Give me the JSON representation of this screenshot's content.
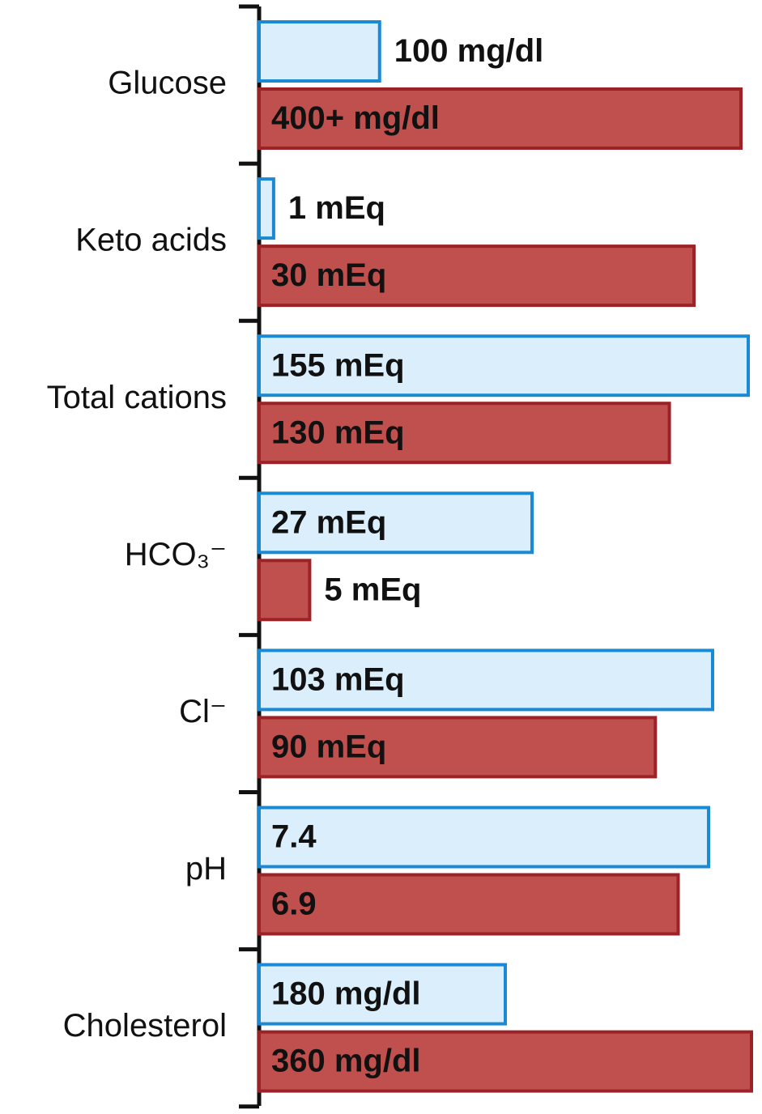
{
  "chart_data": {
    "type": "bar",
    "orientation": "horizontal",
    "categories": [
      "Glucose",
      "Keto acids",
      "Total cations",
      "HCO₃⁻",
      "Cl⁻",
      "pH",
      "Cholesterol"
    ],
    "series": [
      {
        "color": "#dbeefc",
        "values": [
          100,
          1,
          155,
          27,
          103,
          7.4,
          180
        ],
        "value_labels": [
          "100 mg/dl",
          "1 mEq",
          "155 mEq",
          "27 mEq",
          "103 mEq",
          "7.4",
          "180 mg/dl"
        ]
      },
      {
        "color": "#c0504d",
        "values": [
          400,
          30,
          130,
          5,
          90,
          6.9,
          360
        ],
        "value_labels": [
          "400+ mg/dl",
          "30 mEq",
          "130 mEq",
          "5 mEq",
          "90 mEq",
          "6.9",
          "360 mg/dl"
        ]
      }
    ]
  }
}
